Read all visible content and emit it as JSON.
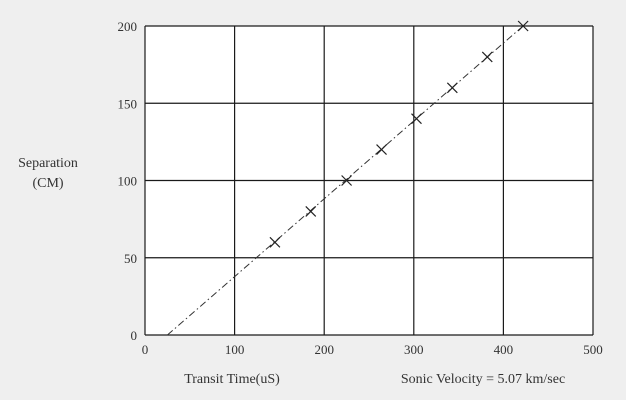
{
  "chart_data": {
    "type": "scatter",
    "title": "",
    "xlabel": "Transit Time(uS)",
    "ylabel_lines": [
      "Separation",
      "(CM)"
    ],
    "annotation": "Sonic Velocity = 5.07 km/sec",
    "xlim": [
      0,
      500
    ],
    "ylim": [
      0,
      200
    ],
    "xticks": [
      0,
      100,
      200,
      300,
      400,
      500
    ],
    "yticks": [
      0,
      50,
      100,
      150,
      200
    ],
    "grid": true,
    "series": [
      {
        "marker": "x",
        "x": [
          145,
          185,
          225,
          264,
          303,
          343,
          382,
          422
        ],
        "y": [
          60,
          80,
          100,
          120,
          140,
          160,
          180,
          200
        ]
      }
    ],
    "fit_line": {
      "style": "dash-dot",
      "x": [
        25,
        422
      ],
      "y": [
        0,
        200
      ]
    },
    "colors": {
      "background": "#efefef",
      "plot_area": "#ffffff",
      "grid": "#1a1a1a",
      "marker": "#222222",
      "fit_line": "#333333",
      "text": "#333333"
    }
  }
}
